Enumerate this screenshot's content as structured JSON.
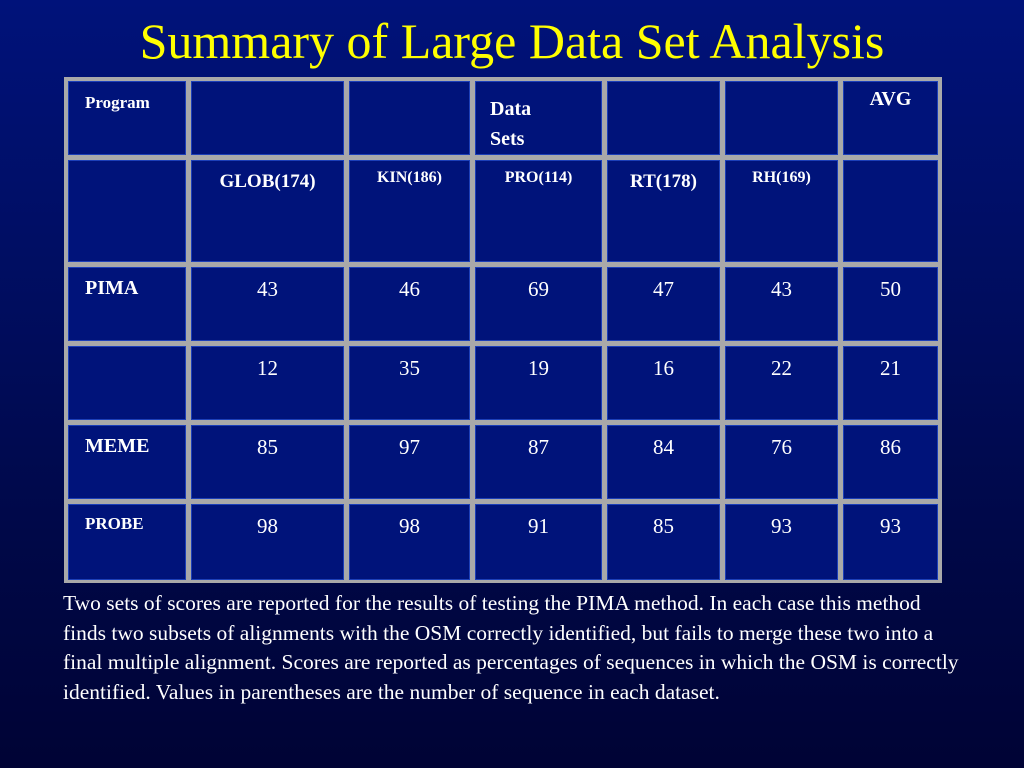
{
  "title": "Summary of Large Data Set Analysis",
  "table": {
    "header": {
      "program_label": "Program",
      "datasets_label": "Data Sets",
      "avg_label": "AVG"
    },
    "datasets": [
      "GLOB(174)",
      "KIN(186)",
      "PRO(114)",
      "RT(178)",
      "RH(169)"
    ],
    "rows": [
      {
        "program": "PIMA",
        "values": [
          "43",
          "46",
          "69",
          "47",
          "43"
        ],
        "avg": "50"
      },
      {
        "program": "",
        "values": [
          "12",
          "35",
          "19",
          "16",
          "22"
        ],
        "avg": "21"
      },
      {
        "program": "MEME",
        "values": [
          "85",
          "97",
          "87",
          "84",
          "76"
        ],
        "avg": "86"
      },
      {
        "program": "PROBE",
        "values": [
          "98",
          "98",
          "91",
          "85",
          "93"
        ],
        "avg": "93"
      }
    ]
  },
  "caption": "Two sets of scores are reported for the results of testing the PIMA method.  In each case this method finds two subsets of alignments with the OSM correctly identified, but fails to merge these two into a final multiple alignment. Scores are reported as percentages of sequences in which the OSM is correctly identified. Values in parentheses are the number of sequence in each dataset.",
  "colors": {
    "title": "#ffff00",
    "cell_fill": "#00137a",
    "grid": "#a9a9a9",
    "text": "#ffffff"
  }
}
